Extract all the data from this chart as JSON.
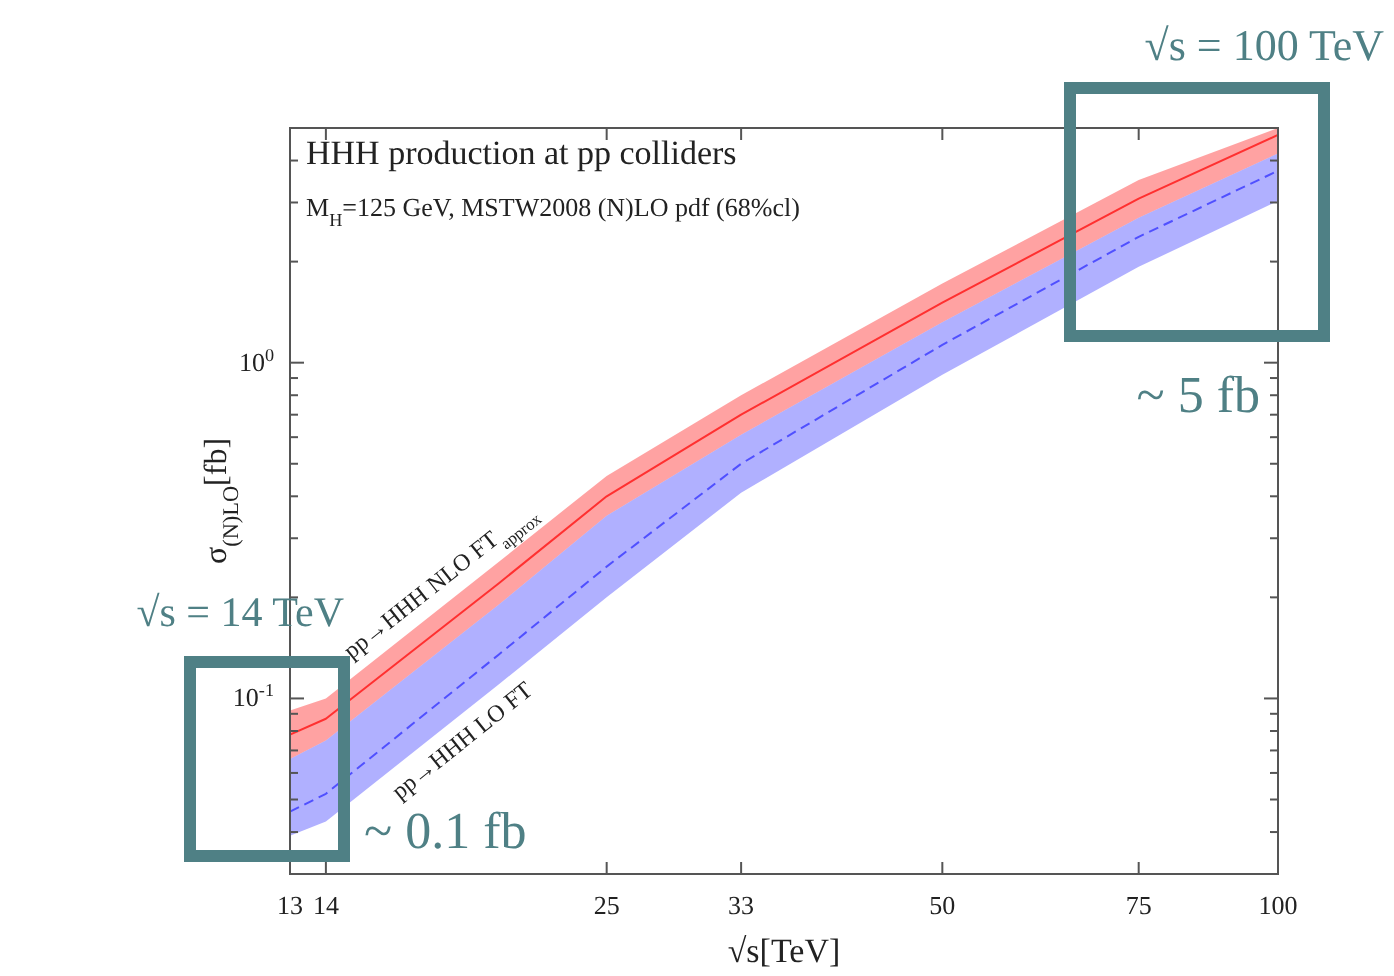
{
  "chart_data": {
    "type": "line",
    "title": "HHH production at pp colliders",
    "subtitle": "M$_{H}$=125 GeV, MSTW2008 (N)LO pdf (68%cl)",
    "xlabel": "√s[TeV]",
    "ylabel": "σ$_{(N)LO}$[fb]",
    "log": "xy",
    "grid": false,
    "xlim": [
      13,
      100
    ],
    "xticks": [
      13,
      14,
      25,
      33,
      50,
      75,
      100
    ],
    "ylim": [
      0.03,
      5
    ],
    "yticks": [
      {
        "value": 0.03,
        "label": null
      },
      {
        "value": 0.04,
        "label": null
      },
      {
        "value": 0.05,
        "label": null
      },
      {
        "value": 0.06,
        "label": null
      },
      {
        "value": 0.07,
        "label": null
      },
      {
        "value": 0.08,
        "label": null
      },
      {
        "value": 0.09,
        "label": null
      },
      {
        "value": 0.1,
        "label": "10$^{-1}$"
      },
      {
        "value": 0.2,
        "label": null
      },
      {
        "value": 0.3,
        "label": null
      },
      {
        "value": 0.4,
        "label": null
      },
      {
        "value": 0.5,
        "label": null
      },
      {
        "value": 0.6,
        "label": null
      },
      {
        "value": 0.7,
        "label": null
      },
      {
        "value": 0.8,
        "label": null
      },
      {
        "value": 0.9,
        "label": null
      },
      {
        "value": 1,
        "label": "10$^{0}$"
      },
      {
        "value": 2,
        "label": null
      },
      {
        "value": 3,
        "label": null
      },
      {
        "value": 4,
        "label": null
      }
    ],
    "x": [
      13,
      14,
      20,
      25,
      33,
      50,
      75,
      100
    ],
    "series": [
      {
        "name": "pp→HHH NLO FT$_{approx}$",
        "color": "#ff3030",
        "line_style": "solid",
        "values": [
          0.078,
          0.087,
          0.22,
          0.4,
          0.7,
          1.51,
          3.08,
          4.77
        ],
        "lower": [
          0.066,
          0.075,
          0.19,
          0.35,
          0.61,
          1.32,
          2.7,
          4.2
        ],
        "upper": [
          0.092,
          0.1,
          0.255,
          0.46,
          0.8,
          1.72,
          3.5,
          5
        ]
      },
      {
        "name": "pp→HHH LO FT",
        "color": "#5050ff",
        "line_style": "dashed",
        "values": [
          0.046,
          0.052,
          0.135,
          0.247,
          0.5,
          1.13,
          2.37,
          3.73
        ],
        "lower": [
          0.039,
          0.043,
          0.11,
          0.2,
          0.41,
          0.92,
          1.93,
          3.03
        ],
        "upper": [
          0.066,
          0.075,
          0.19,
          0.35,
          0.61,
          1.32,
          2.7,
          4.2
        ]
      }
    ],
    "annotations": [
      "√s = 14 TeV",
      "~ 0.1 fb",
      "√s = 100 TeV",
      "~ 5 fb"
    ]
  }
}
